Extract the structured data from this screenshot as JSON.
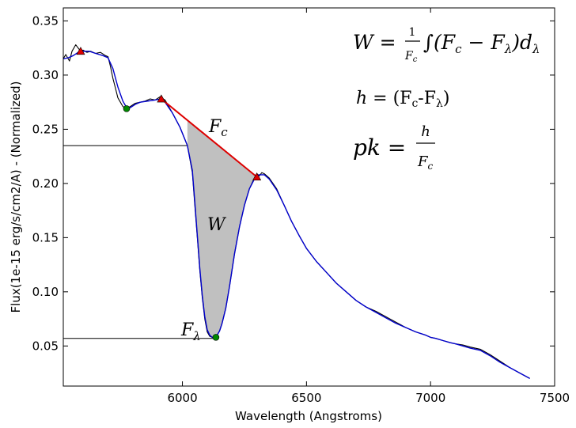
{
  "chart_data": {
    "type": "line",
    "xlabel": "Wavelength (Angstroms)",
    "ylabel": "Flux(1e-15 erg/s/cm2/A) - (Normalized)",
    "xlim": [
      5520,
      7500
    ],
    "ylim": [
      0.013,
      0.362
    ],
    "x_ticks": [
      6000,
      6500,
      7000,
      7500
    ],
    "y_ticks": [
      0.05,
      0.1,
      0.15,
      0.2,
      0.25,
      0.3,
      0.35
    ],
    "y_tick_labels": [
      "0.05",
      "0.10",
      "0.15",
      "0.20",
      "0.25",
      "0.30",
      "0.35"
    ],
    "grid": false,
    "series": [
      {
        "color": "#000000",
        "role": "observed spectrum",
        "x": [
          5520,
          5530,
          5545,
          5555,
          5570,
          5580,
          5590,
          5600,
          5615,
          5630,
          5650,
          5670,
          5690,
          5700,
          5710,
          5720,
          5730,
          5740,
          5760,
          5775,
          5790,
          5810,
          5830,
          5850,
          5870,
          5890,
          5910,
          5930,
          5960,
          5990,
          6020,
          6040,
          6050,
          6060,
          6070,
          6080,
          6090,
          6100,
          6110,
          6120,
          6130,
          6140,
          6150,
          6160,
          6175,
          6190,
          6210,
          6230,
          6250,
          6270,
          6290,
          6300,
          6310,
          6320,
          6330,
          6350,
          6380,
          6410,
          6440,
          6470,
          6500,
          6540,
          6580,
          6620,
          6660,
          6700,
          6740,
          6780,
          6820,
          6860,
          6900,
          6940,
          6980,
          7000,
          7020,
          7050,
          7080,
          7100,
          7130,
          7160,
          7200,
          7240,
          7280,
          7320,
          7360,
          7400
        ],
        "y": [
          0.315,
          0.319,
          0.313,
          0.322,
          0.328,
          0.325,
          0.322,
          0.323,
          0.321,
          0.322,
          0.32,
          0.321,
          0.318,
          0.317,
          0.308,
          0.297,
          0.288,
          0.279,
          0.271,
          0.269,
          0.271,
          0.274,
          0.275,
          0.276,
          0.278,
          0.277,
          0.28,
          0.277,
          0.265,
          0.252,
          0.235,
          0.21,
          0.18,
          0.15,
          0.12,
          0.095,
          0.075,
          0.063,
          0.059,
          0.058,
          0.058,
          0.06,
          0.064,
          0.071,
          0.085,
          0.105,
          0.135,
          0.16,
          0.18,
          0.195,
          0.205,
          0.209,
          0.207,
          0.21,
          0.209,
          0.205,
          0.195,
          0.18,
          0.165,
          0.152,
          0.14,
          0.128,
          0.118,
          0.108,
          0.1,
          0.092,
          0.086,
          0.082,
          0.077,
          0.072,
          0.067,
          0.063,
          0.06,
          0.058,
          0.057,
          0.055,
          0.053,
          0.052,
          0.051,
          0.049,
          0.047,
          0.042,
          0.036,
          0.03,
          0.025,
          0.02
        ]
      },
      {
        "color": "#0000cc",
        "role": "smoothed fit",
        "x": [
          5520,
          5540,
          5560,
          5580,
          5600,
          5625,
          5650,
          5680,
          5700,
          5720,
          5740,
          5760,
          5775,
          5790,
          5810,
          5830,
          5860,
          5890,
          5910,
          5930,
          5960,
          5990,
          6020,
          6040,
          6050,
          6060,
          6070,
          6080,
          6090,
          6100,
          6110,
          6120,
          6130,
          6140,
          6150,
          6160,
          6175,
          6190,
          6210,
          6230,
          6250,
          6270,
          6290,
          6300,
          6310,
          6320,
          6330,
          6350,
          6380,
          6410,
          6440,
          6470,
          6500,
          6540,
          6580,
          6620,
          6660,
          6700,
          6740,
          6780,
          6820,
          6860,
          6900,
          6940,
          6980,
          7000,
          7020,
          7050,
          7080,
          7100,
          7130,
          7160,
          7200,
          7240,
          7280,
          7320,
          7360,
          7400
        ],
        "y": [
          0.315,
          0.316,
          0.318,
          0.321,
          0.322,
          0.322,
          0.32,
          0.318,
          0.316,
          0.306,
          0.289,
          0.276,
          0.27,
          0.27,
          0.273,
          0.275,
          0.276,
          0.277,
          0.278,
          0.275,
          0.265,
          0.252,
          0.235,
          0.212,
          0.183,
          0.152,
          0.122,
          0.097,
          0.077,
          0.065,
          0.06,
          0.058,
          0.058,
          0.06,
          0.064,
          0.071,
          0.085,
          0.105,
          0.135,
          0.16,
          0.18,
          0.195,
          0.204,
          0.207,
          0.208,
          0.208,
          0.208,
          0.204,
          0.194,
          0.18,
          0.165,
          0.152,
          0.14,
          0.128,
          0.118,
          0.108,
          0.1,
          0.092,
          0.086,
          0.081,
          0.076,
          0.071,
          0.067,
          0.063,
          0.06,
          0.058,
          0.057,
          0.055,
          0.053,
          0.052,
          0.05,
          0.048,
          0.046,
          0.041,
          0.035,
          0.03,
          0.025,
          0.02
        ]
      }
    ],
    "continuum_line": {
      "color": "#dd0000",
      "x": [
        5915,
        6300
      ],
      "y": [
        0.278,
        0.206
      ]
    },
    "shaded_region": {
      "color": "#c0c0c0"
    },
    "reference_lines": [
      {
        "y": 0.235,
        "x_end": 6150,
        "color": "#000000"
      },
      {
        "y": 0.057,
        "x_end": 6135,
        "color": "#000000"
      }
    ],
    "markers": [
      {
        "shape": "triangle",
        "color": "#dd0000",
        "x": 5590,
        "y": 0.322
      },
      {
        "shape": "triangle",
        "color": "#dd0000",
        "x": 5915,
        "y": 0.278
      },
      {
        "shape": "triangle",
        "color": "#dd0000",
        "x": 6300,
        "y": 0.206
      },
      {
        "shape": "circle",
        "color": "#008800",
        "x": 5775,
        "y": 0.269
      },
      {
        "shape": "circle",
        "color": "#008800",
        "x": 6135,
        "y": 0.058
      }
    ],
    "annotations": {
      "fc_label": "F",
      "fc_sub": "c",
      "w_label": "W",
      "flambda_label": "F",
      "flambda_sub": "λ",
      "eq1_lhs": "W = ",
      "eq1_num": "1",
      "eq1_den": "F",
      "eq1_den_sub": "c",
      "eq1_integral": "∫(F",
      "eq1_c": "c",
      "eq1_minus": " − F",
      "eq1_lambda": "λ",
      "eq1_d": ")d",
      "eq1_dsub": "λ",
      "eq2_h": "h",
      "eq2_eq": " = (F",
      "eq2_c": "c",
      "eq2_mid": "-F",
      "eq2_l": "λ",
      "eq2_end": ")",
      "eq3_lhs": "pk = ",
      "eq3_num": "h",
      "eq3_den": "F",
      "eq3_den_sub": "c"
    }
  }
}
